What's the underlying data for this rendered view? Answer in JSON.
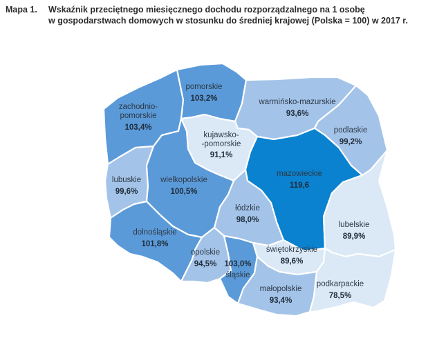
{
  "caption": {
    "label": "Mapa 1.",
    "line1": "Wskaźnik przeciętnego miesięcznego dochodu rozporządzalnego na 1 osobę",
    "line2": "w gospodarstwach domowych w stosunku do średniej krajowej (Polska = 100) w 2017 r."
  },
  "colors": {
    "high": "#0a82cf",
    "mid": "#5b9ad8",
    "low": "#a4c3e8",
    "lowest": "#dbe8f6",
    "outline": "#ffffff"
  },
  "regions": [
    {
      "id": "zachodniopomorskie",
      "name_lines": [
        "zachodnio-",
        "pomorskie"
      ],
      "value": "103,4%",
      "fill": "#5b9ad8"
    },
    {
      "id": "pomorskie",
      "name_lines": [
        "pomorskie"
      ],
      "value": "103,2%",
      "fill": "#5b9ad8"
    },
    {
      "id": "warminsko-mazurskie",
      "name_lines": [
        "warmińsko-mazurskie"
      ],
      "value": "93,6%",
      "fill": "#a4c3e8"
    },
    {
      "id": "podlaskie",
      "name_lines": [
        "podlaskie"
      ],
      "value": "99,2%",
      "fill": "#a4c3e8"
    },
    {
      "id": "kujawsko-pomorskie",
      "name_lines": [
        "kujawsko-",
        "-pomorskie"
      ],
      "value": "91,1%",
      "fill": "#dbe8f6"
    },
    {
      "id": "mazowieckie",
      "name_lines": [
        "mazowieckie"
      ],
      "value": "119,6",
      "fill": "#0a82cf"
    },
    {
      "id": "lubuskie",
      "name_lines": [
        "lubuskie"
      ],
      "value": "99,6%",
      "fill": "#a4c3e8"
    },
    {
      "id": "wielkopolskie",
      "name_lines": [
        "wielkopolskie"
      ],
      "value": "100,5%",
      "fill": "#5b9ad8"
    },
    {
      "id": "lodzkie",
      "name_lines": [
        "łódzkie"
      ],
      "value": "98,0%",
      "fill": "#a4c3e8"
    },
    {
      "id": "lubelskie",
      "name_lines": [
        "lubelskie"
      ],
      "value": "89,9%",
      "fill": "#dbe8f6"
    },
    {
      "id": "dolnoslaskie",
      "name_lines": [
        "dolnośląskie"
      ],
      "value": "101,8%",
      "fill": "#5b9ad8"
    },
    {
      "id": "opolskie",
      "name_lines": [
        "opolskie"
      ],
      "value": "94,5%",
      "fill": "#a4c3e8"
    },
    {
      "id": "slaskie",
      "name_lines": [
        "śląskie"
      ],
      "value": "103,0%",
      "fill": "#5b9ad8"
    },
    {
      "id": "swietokrzyskie",
      "name_lines": [
        "świętokrzyskie"
      ],
      "value": "89,6%",
      "fill": "#dbe8f6"
    },
    {
      "id": "malopolskie",
      "name_lines": [
        "małopolskie"
      ],
      "value": "93,4%",
      "fill": "#a4c3e8"
    },
    {
      "id": "podkarpackie",
      "name_lines": [
        "podkarpackie"
      ],
      "value": "78,5%",
      "fill": "#dbe8f6"
    }
  ]
}
